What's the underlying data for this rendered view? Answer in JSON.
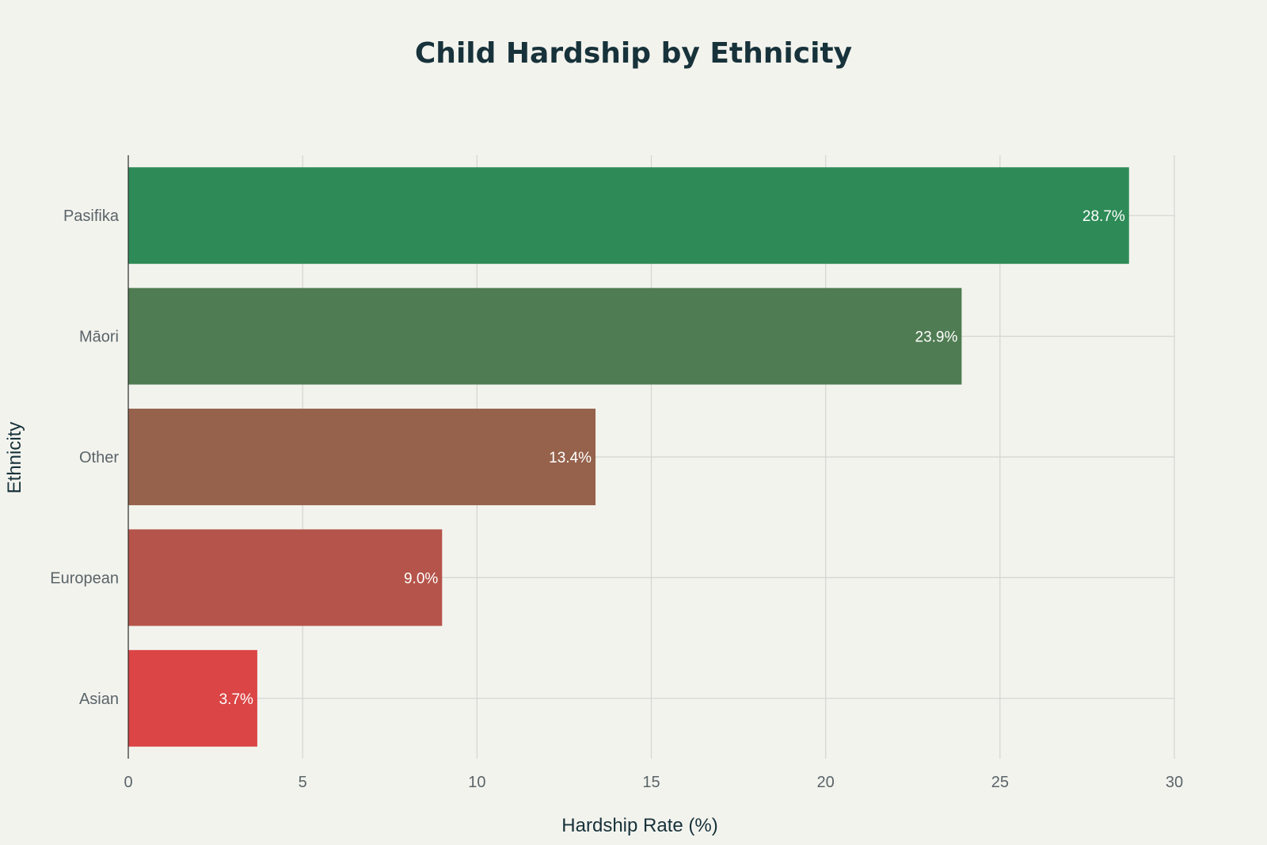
{
  "chart_data": {
    "type": "bar",
    "orientation": "horizontal",
    "title": "Child Hardship by Ethnicity",
    "xlabel": "Hardship Rate (%)",
    "ylabel": "Ethnicity",
    "categories": [
      "Pasifika",
      "Māori",
      "Other",
      "European",
      "Asian"
    ],
    "values": [
      28.7,
      23.9,
      13.4,
      9.0,
      3.7
    ],
    "data_labels": [
      "28.7%",
      "23.9%",
      "13.4%",
      "9.0%",
      "3.7%"
    ],
    "colors": [
      "#2e8b57",
      "#4f7c52",
      "#96624c",
      "#b5544a",
      "#db4545"
    ],
    "xlim": [
      0,
      30
    ],
    "xticks": [
      0,
      5,
      10,
      15,
      20,
      25,
      30
    ],
    "grid": true,
    "legend": false
  }
}
